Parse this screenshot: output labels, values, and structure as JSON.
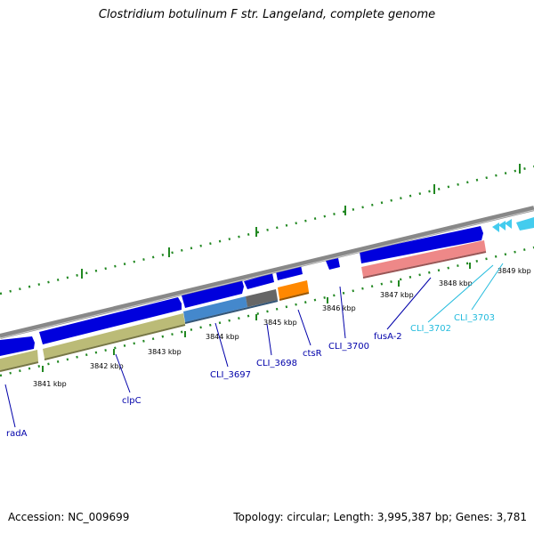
{
  "title": "Clostridium botulinum F str. Langeland, complete genome",
  "footer": {
    "accession": "Accession: NC_009699",
    "topology": "Topology: circular; Length: 3,995,387 bp; Genes: 3,781"
  },
  "colors": {
    "backbone": "#888888",
    "cds_forward": "#0000dd",
    "cds_other": "#44ccee",
    "tick": "#228822",
    "label_blue": "#0000aa",
    "label_cyan": "#22bbdd"
  },
  "scale_labels": [
    "3841 kbp",
    "3842 kbp",
    "3843 kbp",
    "3844 kbp",
    "3845 kbp",
    "3846 kbp",
    "3847 kbp",
    "3848 kbp",
    "3849 kbp"
  ],
  "gene_labels": [
    "radA",
    "clpC",
    "CLI_3697",
    "CLI_3698",
    "ctsR",
    "CLI_3700",
    "fusA-2",
    "CLI_3702",
    "CLI_3703"
  ],
  "cog_colors": [
    "#bbbb77",
    "#4488cc",
    "#666666",
    "#ff8800",
    "#ee8888"
  ]
}
